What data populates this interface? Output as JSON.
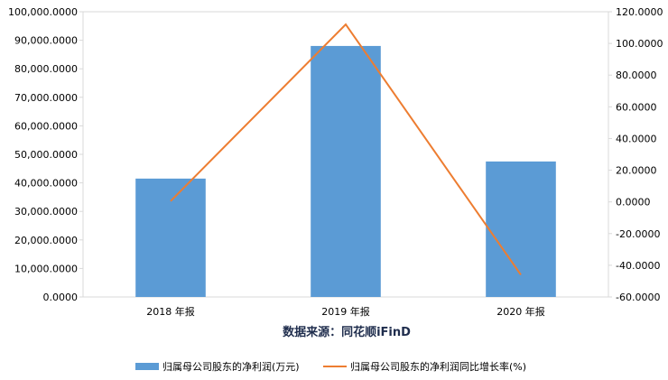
{
  "chart_data": {
    "type": "bar",
    "categories": [
      "2018 年报",
      "2019 年报",
      "2020 年报"
    ],
    "series": [
      {
        "name": "归属母公司股东的净利润(万元)",
        "type": "bar",
        "axis": "left",
        "color": "#5b9bd5",
        "values": [
          41500,
          88000,
          47500
        ]
      },
      {
        "name": "归属母公司股东的净利润同比增长率(%)",
        "type": "line",
        "axis": "right",
        "color": "#ed7d31",
        "values": [
          0.5,
          112.0,
          -46.0
        ]
      }
    ],
    "y_left": {
      "lim": [
        0,
        100000
      ],
      "ticks": [
        "0.0000",
        "10,000.0000",
        "20,000.0000",
        "30,000.0000",
        "40,000.0000",
        "50,000.0000",
        "60,000.0000",
        "70,000.0000",
        "80,000.0000",
        "90,000.0000",
        "100,000.0000"
      ]
    },
    "y_right": {
      "lim": [
        -60,
        120
      ],
      "ticks": [
        "-60.0000",
        "-40.0000",
        "-20.0000",
        "0.0000",
        "20.0000",
        "40.0000",
        "60.0000",
        "80.0000",
        "100.0000",
        "120.0000"
      ]
    },
    "xlabel": "数据来源：同花顺iFinD",
    "grid": false,
    "legend_position": "bottom"
  }
}
